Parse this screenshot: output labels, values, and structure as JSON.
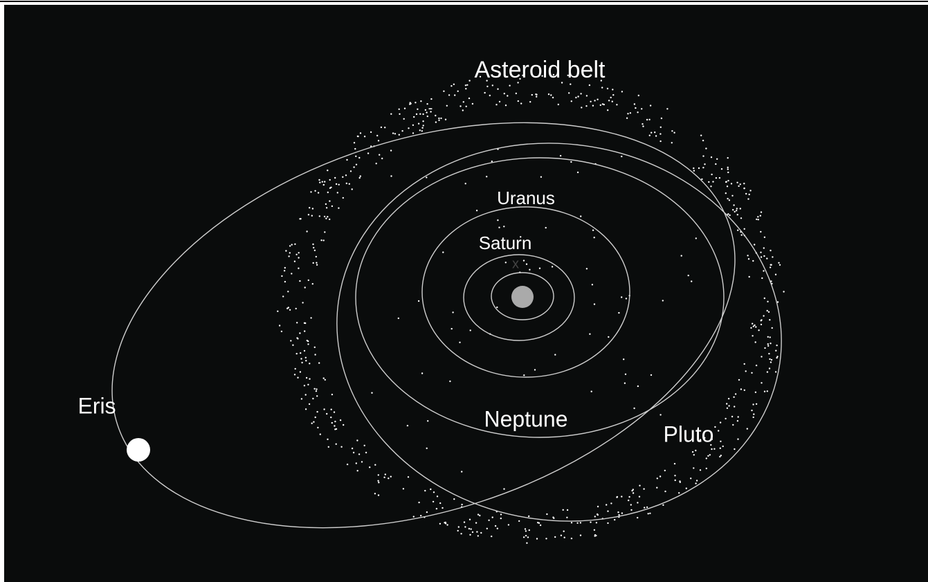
{
  "labels": {
    "asteroid_belt": "Asteroid belt",
    "uranus": "Uranus",
    "saturn": "Saturn",
    "neptune": "Neptune",
    "pluto": "Pluto",
    "eris": "Eris",
    "center_mark": "x",
    "dash_mark": "-"
  }
}
